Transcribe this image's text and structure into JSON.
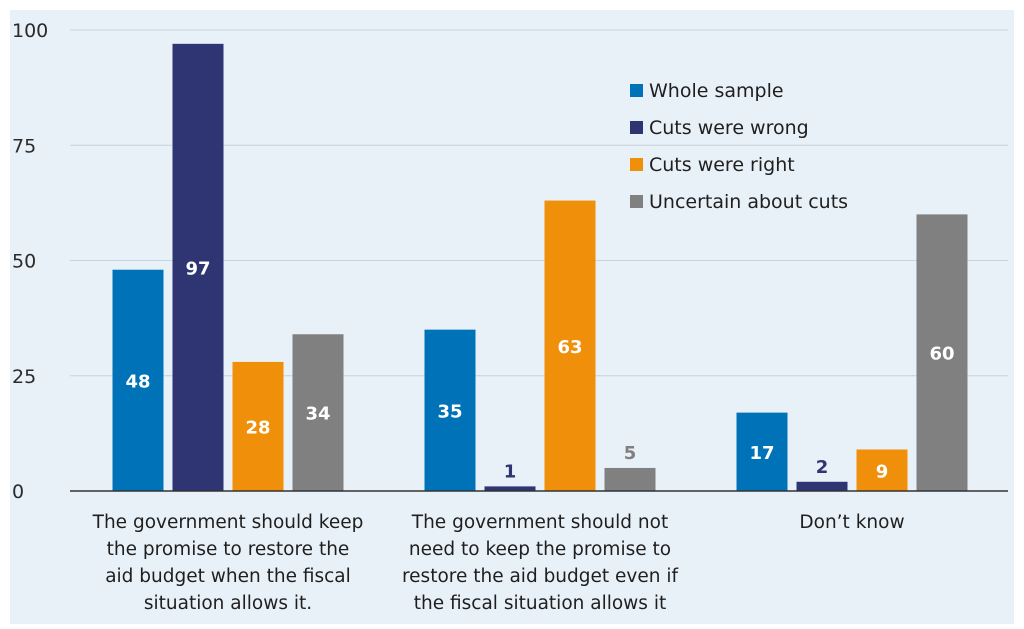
{
  "chart_data": {
    "type": "bar",
    "categories": [
      [
        "The government should keep",
        "the promise to restore the",
        "aid budget when the fiscal",
        "situation allows it."
      ],
      [
        "The government should not",
        "need to keep the promise to",
        "restore the aid budget even if",
        "the fiscal situation allows it"
      ],
      [
        "Don’t know"
      ]
    ],
    "series": [
      {
        "name": "Whole sample",
        "color": "#0072b8",
        "values": [
          48,
          35,
          17
        ]
      },
      {
        "name": "Cuts were wrong",
        "color": "#2e3572",
        "values": [
          97,
          1,
          2
        ]
      },
      {
        "name": "Cuts were right",
        "color": "#f0900a",
        "values": [
          28,
          63,
          9
        ]
      },
      {
        "name": "Uncertain about cuts",
        "color": "#808080",
        "values": [
          34,
          5,
          60
        ]
      }
    ],
    "data_labels": [
      [
        "48",
        "35",
        "17"
      ],
      [
        "97",
        "1",
        "2"
      ],
      [
        "28",
        "63",
        "9"
      ],
      [
        "34",
        "5",
        "60"
      ]
    ],
    "y_ticks": [
      0,
      25,
      50,
      75,
      100
    ],
    "y_tick_labels": [
      "0",
      "25",
      "50",
      "75",
      "100"
    ],
    "ylim": [
      0,
      100
    ],
    "grid": true,
    "legend_position": "top-right",
    "plot_background": "#e8f0f8",
    "title": "",
    "xlabel": "",
    "ylabel": ""
  }
}
